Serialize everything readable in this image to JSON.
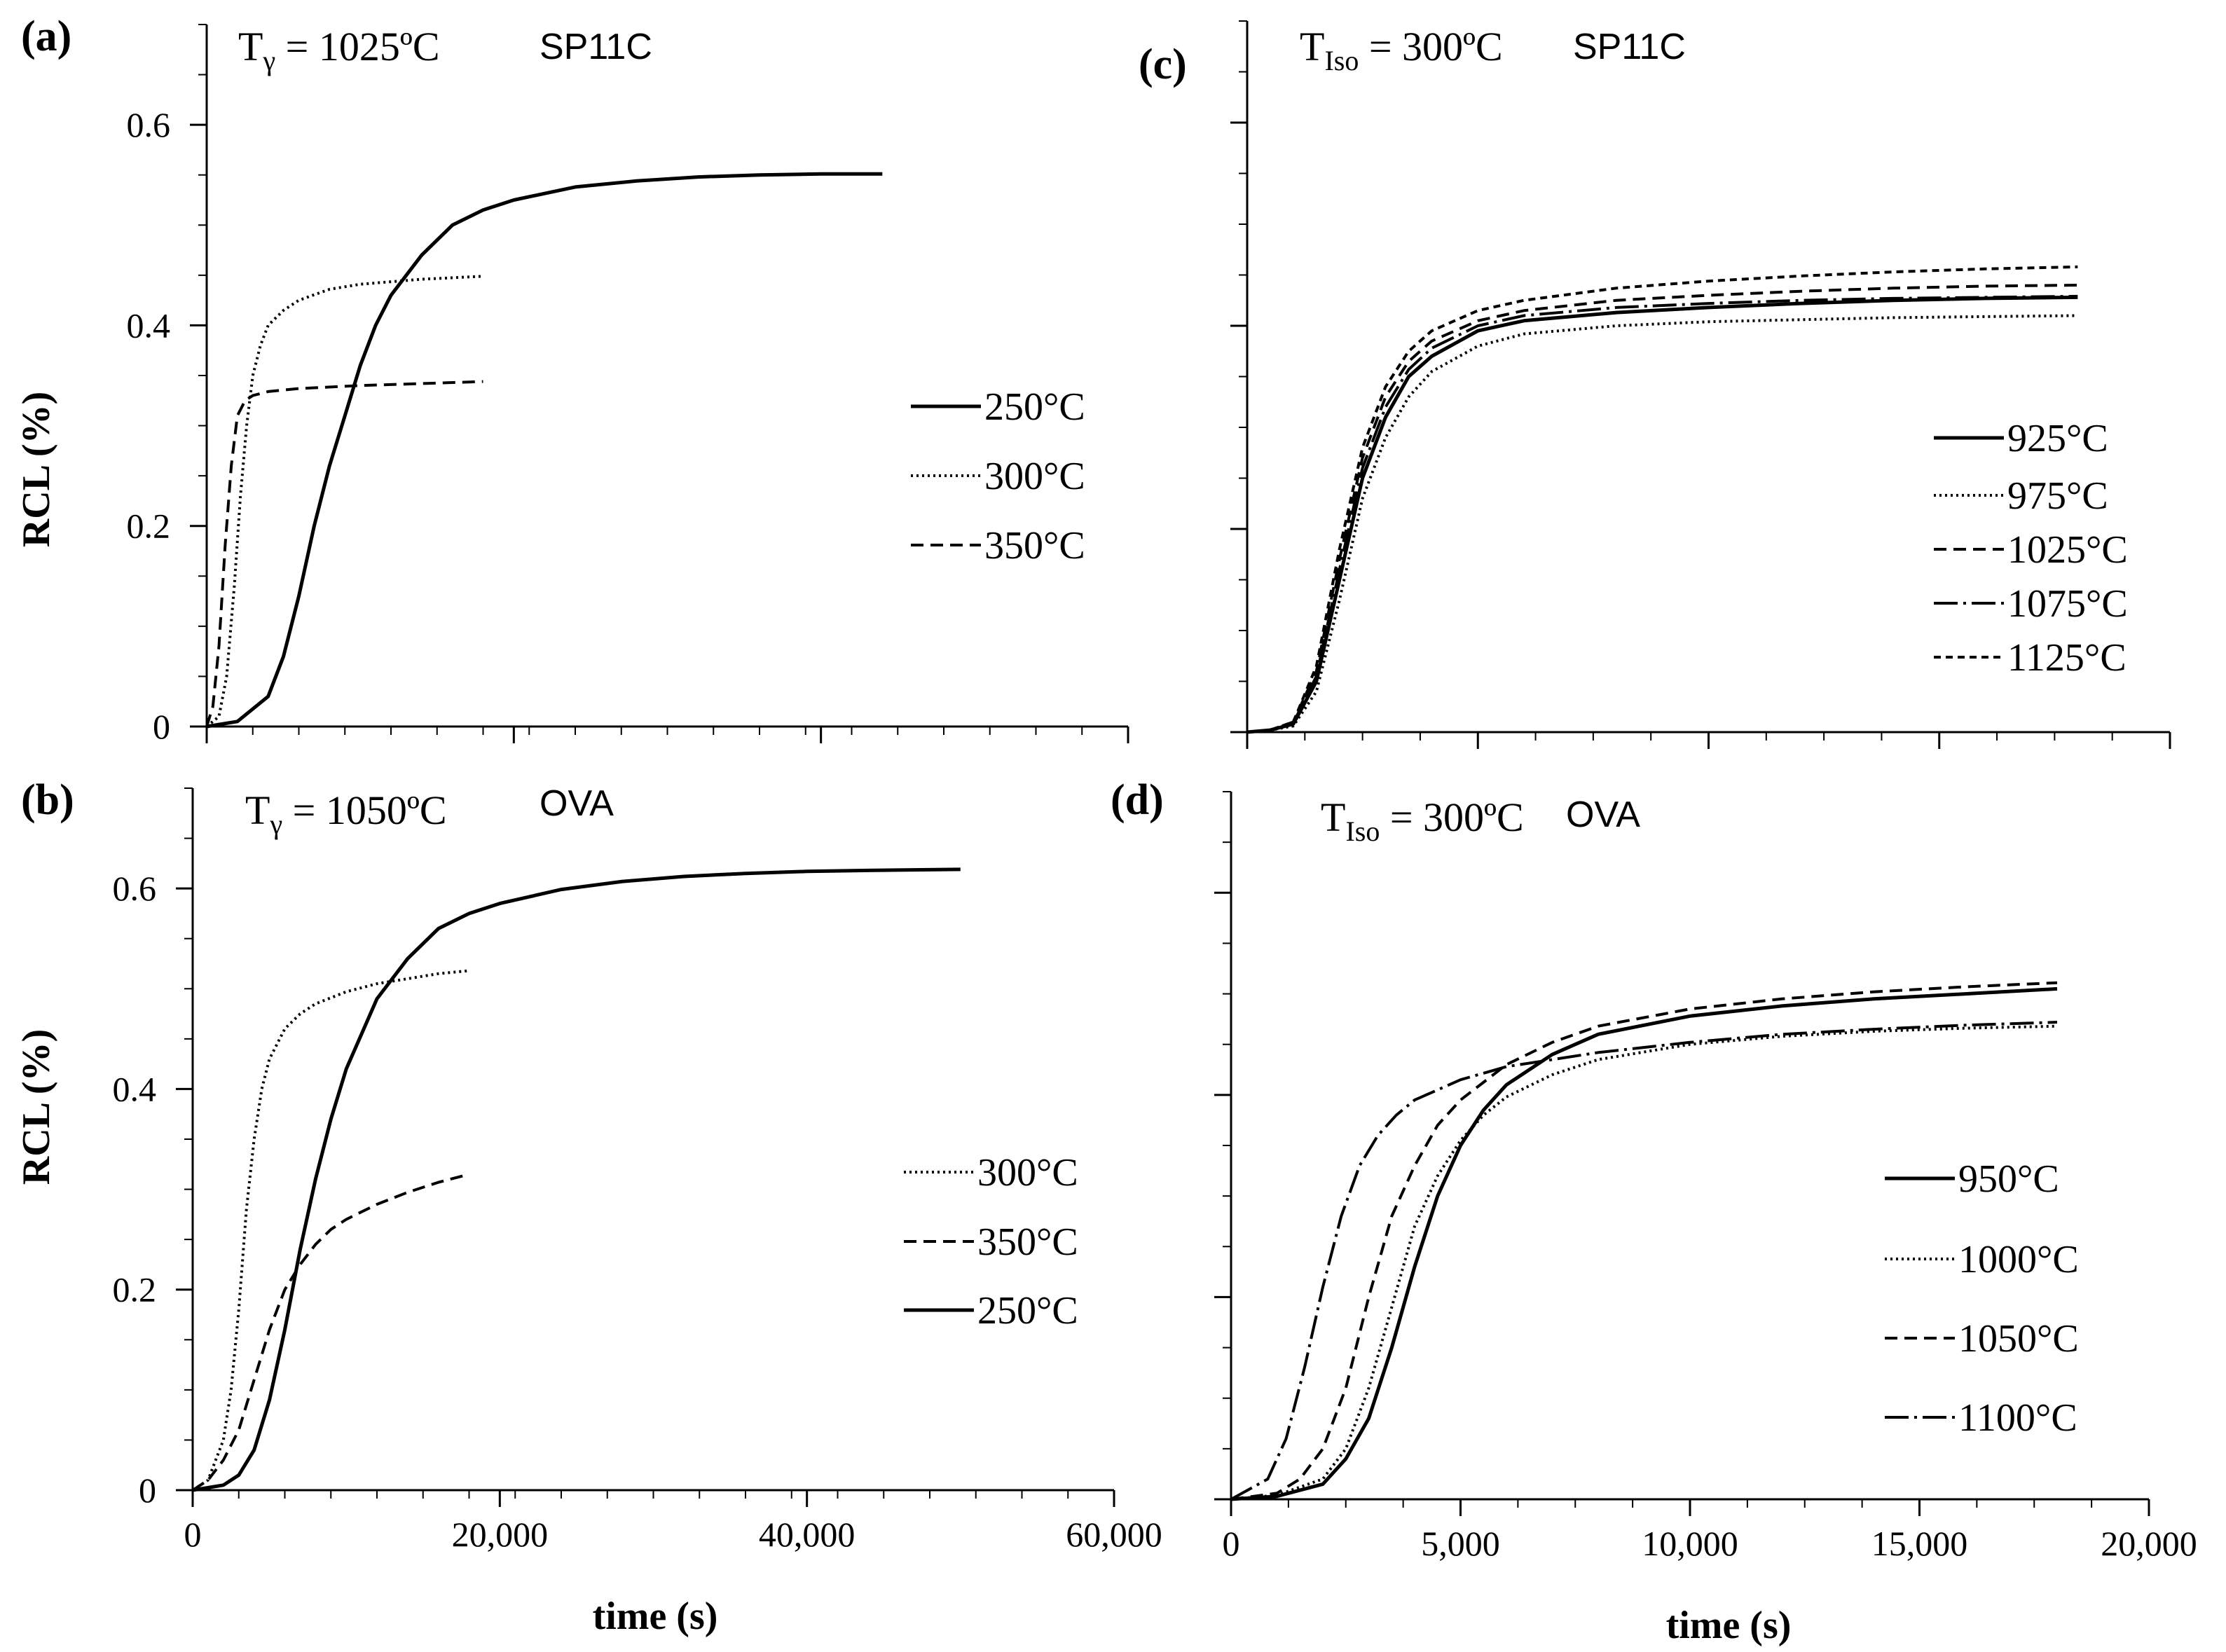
{
  "chart_data": [
    {
      "panel": "(a)",
      "type": "line",
      "title_main": "T",
      "title_sub": "γ",
      "title_rest": " = 1025ºC",
      "title_sample": "SP11C",
      "ylabel": "RCL (%)",
      "xlabel": "",
      "xlim": [
        0,
        60000
      ],
      "ylim": [
        0,
        0.7
      ],
      "x_ticks": [
        0,
        20000,
        40000,
        60000
      ],
      "x_tick_labels": [],
      "y_ticks": [
        0,
        0.2,
        0.4,
        0.6
      ],
      "y_tick_labels": [
        "0",
        "0.2",
        "0.4",
        "0.6"
      ],
      "series": [
        {
          "name": "250°C",
          "style": "solid",
          "x": [
            0,
            2000,
            4000,
            5000,
            6000,
            7000,
            8000,
            9000,
            10000,
            11000,
            12000,
            14000,
            16000,
            18000,
            20000,
            24000,
            28000,
            32000,
            36000,
            40000,
            44000
          ],
          "y": [
            0,
            0.005,
            0.03,
            0.07,
            0.13,
            0.2,
            0.26,
            0.31,
            0.36,
            0.4,
            0.43,
            0.47,
            0.5,
            0.515,
            0.525,
            0.538,
            0.544,
            0.548,
            0.55,
            0.551,
            0.551
          ]
        },
        {
          "name": "300°C",
          "style": "dotted",
          "x": [
            0,
            800,
            1300,
            1800,
            2200,
            2600,
            3000,
            3500,
            4000,
            5000,
            6000,
            8000,
            10000,
            14000,
            18000
          ],
          "y": [
            0,
            0.01,
            0.05,
            0.14,
            0.23,
            0.3,
            0.35,
            0.38,
            0.4,
            0.415,
            0.425,
            0.436,
            0.441,
            0.446,
            0.449
          ]
        },
        {
          "name": "350°C",
          "style": "dashed",
          "x": [
            0,
            400,
            800,
            1200,
            1600,
            2000,
            2500,
            3000,
            4000,
            6000,
            10000,
            14000,
            18000
          ],
          "y": [
            0,
            0.02,
            0.08,
            0.18,
            0.26,
            0.31,
            0.325,
            0.33,
            0.334,
            0.337,
            0.34,
            0.342,
            0.344
          ]
        }
      ]
    },
    {
      "panel": "(b)",
      "type": "line",
      "title_main": "T",
      "title_sub": "γ",
      "title_rest": " = 1050ºC",
      "title_sample": "OVA",
      "ylabel": "RCL (%)",
      "xlabel": "time (s)",
      "xlim": [
        0,
        60000
      ],
      "ylim": [
        0,
        0.7
      ],
      "x_ticks": [
        0,
        20000,
        40000,
        60000
      ],
      "x_tick_labels": [
        "0",
        "20,000",
        "40,000",
        "60,000"
      ],
      "y_ticks": [
        0,
        0.2,
        0.4,
        0.6
      ],
      "y_tick_labels": [
        "0",
        "0.2",
        "0.4",
        "0.6"
      ],
      "series": [
        {
          "name": "300°C",
          "style": "dotted",
          "x": [
            0,
            1000,
            2000,
            2500,
            3000,
            3500,
            4000,
            4500,
            5000,
            6000,
            7000,
            8000,
            10000,
            12000,
            14000,
            16000,
            18000
          ],
          "y": [
            0,
            0.01,
            0.05,
            0.1,
            0.18,
            0.28,
            0.35,
            0.4,
            0.43,
            0.46,
            0.475,
            0.485,
            0.497,
            0.505,
            0.51,
            0.515,
            0.518
          ]
        },
        {
          "name": "350°C",
          "style": "dashed",
          "x": [
            0,
            1000,
            2000,
            3000,
            4000,
            5000,
            6000,
            7000,
            8000,
            9000,
            10000,
            12000,
            14000,
            16000,
            18000
          ],
          "y": [
            0,
            0.01,
            0.03,
            0.06,
            0.11,
            0.16,
            0.2,
            0.225,
            0.245,
            0.26,
            0.27,
            0.285,
            0.297,
            0.307,
            0.315
          ]
        },
        {
          "name": "250°C",
          "style": "solid",
          "x": [
            0,
            2000,
            3000,
            4000,
            5000,
            6000,
            7000,
            8000,
            9000,
            10000,
            12000,
            14000,
            16000,
            18000,
            20000,
            24000,
            28000,
            32000,
            36000,
            40000,
            44000,
            50000
          ],
          "y": [
            0,
            0.005,
            0.015,
            0.04,
            0.09,
            0.16,
            0.24,
            0.31,
            0.37,
            0.42,
            0.49,
            0.53,
            0.56,
            0.575,
            0.585,
            0.599,
            0.607,
            0.612,
            0.615,
            0.617,
            0.618,
            0.619
          ]
        }
      ]
    },
    {
      "panel": "(c)",
      "type": "line",
      "title_main": "T",
      "title_sub": "Iso",
      "title_rest": " = 300ºC",
      "title_sample": "SP11C",
      "ylabel": "",
      "xlabel": "",
      "xlim": [
        0,
        20000
      ],
      "ylim": [
        0,
        0.7
      ],
      "x_ticks": [
        0,
        5000,
        10000,
        15000,
        20000
      ],
      "x_tick_labels": [],
      "y_ticks": [
        0,
        0.2,
        0.4,
        0.6
      ],
      "y_tick_labels": [],
      "series": [
        {
          "name": "925°C",
          "style": "solid",
          "x": [
            0,
            500,
            1000,
            1500,
            2000,
            2500,
            3000,
            3500,
            4000,
            5000,
            6000,
            8000,
            10000,
            12000,
            14000,
            16000,
            18000
          ],
          "y": [
            0,
            0.002,
            0.008,
            0.05,
            0.15,
            0.25,
            0.31,
            0.35,
            0.37,
            0.395,
            0.405,
            0.413,
            0.418,
            0.422,
            0.425,
            0.427,
            0.428
          ]
        },
        {
          "name": "975°C",
          "style": "dotted",
          "x": [
            0,
            500,
            1000,
            1500,
            2000,
            2500,
            3000,
            3500,
            4000,
            5000,
            6000,
            8000,
            10000,
            12000,
            14000,
            16000,
            18000
          ],
          "y": [
            0,
            0.002,
            0.006,
            0.04,
            0.13,
            0.23,
            0.29,
            0.33,
            0.355,
            0.38,
            0.392,
            0.4,
            0.404,
            0.406,
            0.408,
            0.409,
            0.41
          ]
        },
        {
          "name": "1025°C",
          "style": "dashed",
          "x": [
            0,
            500,
            1000,
            1500,
            2000,
            2500,
            3000,
            3500,
            4000,
            5000,
            6000,
            8000,
            10000,
            12000,
            14000,
            16000,
            18000
          ],
          "y": [
            0,
            0.002,
            0.01,
            0.06,
            0.17,
            0.27,
            0.33,
            0.365,
            0.385,
            0.405,
            0.415,
            0.425,
            0.43,
            0.434,
            0.437,
            0.439,
            0.44
          ]
        },
        {
          "name": "1075°C",
          "style": "dashdot",
          "x": [
            0,
            500,
            1000,
            1500,
            2000,
            2500,
            3000,
            3500,
            4000,
            5000,
            6000,
            8000,
            10000,
            12000,
            14000,
            16000,
            18000
          ],
          "y": [
            0,
            0.002,
            0.009,
            0.055,
            0.16,
            0.26,
            0.32,
            0.357,
            0.378,
            0.4,
            0.41,
            0.418,
            0.422,
            0.425,
            0.427,
            0.428,
            0.429
          ]
        },
        {
          "name": "1125°C",
          "style": "shortdash",
          "x": [
            0,
            500,
            1000,
            1500,
            2000,
            2500,
            3000,
            3500,
            4000,
            5000,
            6000,
            8000,
            10000,
            12000,
            14000,
            16000,
            18000
          ],
          "y": [
            0,
            0.002,
            0.01,
            0.065,
            0.18,
            0.28,
            0.34,
            0.375,
            0.395,
            0.415,
            0.425,
            0.437,
            0.444,
            0.449,
            0.453,
            0.456,
            0.458
          ]
        }
      ],
      "legend_labels": [
        "925°C",
        "975°C",
        "1025°C",
        "1075°C",
        "1125°C"
      ]
    },
    {
      "panel": "(d)",
      "type": "line",
      "title_main": "T",
      "title_sub": "Iso",
      "title_rest": " = 300ºC",
      "title_sample": "OVA",
      "ylabel": "",
      "xlabel": "time (s)",
      "xlim": [
        0,
        20000
      ],
      "ylim": [
        0,
        0.7
      ],
      "x_ticks": [
        0,
        5000,
        10000,
        15000,
        20000
      ],
      "x_tick_labels": [
        "0",
        "5,000",
        "10,000",
        "15,000",
        "20,000"
      ],
      "y_ticks": [
        0,
        0.2,
        0.4,
        0.6
      ],
      "y_tick_labels": [],
      "series": [
        {
          "name": "950°C",
          "style": "solid",
          "x": [
            0,
            1000,
            2000,
            2500,
            3000,
            3500,
            4000,
            4500,
            5000,
            5500,
            6000,
            7000,
            8000,
            10000,
            12000,
            14000,
            16000,
            18000
          ],
          "y": [
            0,
            0.003,
            0.015,
            0.04,
            0.08,
            0.15,
            0.23,
            0.3,
            0.35,
            0.385,
            0.41,
            0.44,
            0.46,
            0.478,
            0.488,
            0.495,
            0.5,
            0.505
          ]
        },
        {
          "name": "1000°C",
          "style": "dotted",
          "x": [
            0,
            1000,
            2000,
            2500,
            3000,
            3500,
            4000,
            4500,
            5000,
            5500,
            6000,
            7000,
            8000,
            10000,
            12000,
            14000,
            16000,
            18000
          ],
          "y": [
            0,
            0.004,
            0.02,
            0.05,
            0.11,
            0.19,
            0.27,
            0.32,
            0.355,
            0.38,
            0.398,
            0.42,
            0.435,
            0.45,
            0.458,
            0.463,
            0.466,
            0.468
          ]
        },
        {
          "name": "1050°C",
          "style": "dashed",
          "x": [
            0,
            1000,
            1500,
            2000,
            2500,
            3000,
            3500,
            4000,
            4500,
            5000,
            6000,
            7000,
            8000,
            10000,
            12000,
            14000,
            16000,
            18000
          ],
          "y": [
            0,
            0.006,
            0.02,
            0.05,
            0.11,
            0.2,
            0.28,
            0.33,
            0.37,
            0.395,
            0.43,
            0.452,
            0.468,
            0.485,
            0.495,
            0.502,
            0.507,
            0.511
          ]
        },
        {
          "name": "1100°C",
          "style": "dashdot",
          "x": [
            0,
            800,
            1200,
            1600,
            2000,
            2400,
            2800,
            3200,
            3600,
            4000,
            5000,
            6000,
            8000,
            10000,
            12000,
            14000,
            16000,
            18000
          ],
          "y": [
            0,
            0.02,
            0.06,
            0.13,
            0.21,
            0.28,
            0.33,
            0.36,
            0.38,
            0.395,
            0.415,
            0.428,
            0.442,
            0.452,
            0.46,
            0.465,
            0.469,
            0.472
          ]
        }
      ],
      "legend_labels": [
        "950°C",
        "1000°C",
        "1050°C",
        "1100°C"
      ]
    }
  ]
}
